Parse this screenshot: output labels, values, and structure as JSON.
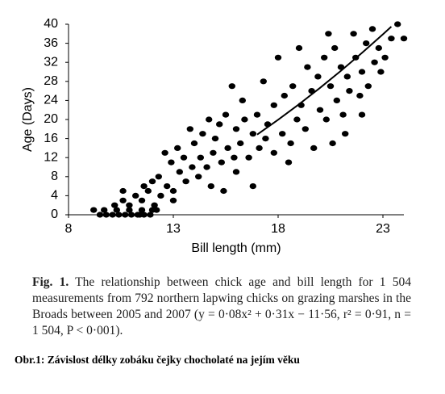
{
  "chart_data": {
    "type": "scatter",
    "x_label": "Bill length (mm)",
    "y_label": "Age (Days)",
    "xlim": [
      8,
      24
    ],
    "xticks": [
      8,
      13,
      18,
      23
    ],
    "ylim": [
      0,
      40
    ],
    "yticks": [
      0,
      4,
      8,
      12,
      16,
      20,
      24,
      28,
      32,
      36,
      40
    ],
    "series": [
      {
        "type": "scatter",
        "color": "#000000",
        "x": [
          9.2,
          9.5,
          9.8,
          10.1,
          10.4,
          10.7,
          11.0,
          11.3,
          11.6,
          11.9,
          9.7,
          10.3,
          10.9,
          11.5,
          12.0,
          10.2,
          10.6,
          10.9,
          11.2,
          11.5,
          11.8,
          12.1,
          12.4,
          12.0,
          11.6,
          10.6,
          12.3,
          12.7,
          13.0,
          13.3,
          12.9,
          13.6,
          13.9,
          14.2,
          12.6,
          13.2,
          13.5,
          14.0,
          14.3,
          14.6,
          14.9,
          13.8,
          14.4,
          15.0,
          15.3,
          15.6,
          15.9,
          16.2,
          14.7,
          15.2,
          15.5,
          16.0,
          16.4,
          16.8,
          17.1,
          17.4,
          13.0,
          12.2,
          11.4,
          14.8,
          16.0,
          16.6,
          17.8,
          17.0,
          17.5,
          17.8,
          18.2,
          18.6,
          18.9,
          19.3,
          18.3,
          18.7,
          19.1,
          19.6,
          20.0,
          20.3,
          19.4,
          19.9,
          20.5,
          20.8,
          21.1,
          21.4,
          20.2,
          20.7,
          21.0,
          21.3,
          21.7,
          22.0,
          22.3,
          22.6,
          21.6,
          22.2,
          22.5,
          22.8,
          23.1,
          23.4,
          23.7,
          24.0,
          20.4,
          21.9,
          22.9,
          16.3,
          15.8,
          17.3,
          18.0,
          19.0,
          21.2,
          22.0,
          16.8,
          15.4,
          18.5,
          20.6,
          19.7
        ],
        "values": [
          1,
          0,
          0,
          0,
          0,
          0,
          0,
          0,
          0,
          0,
          1,
          1,
          1,
          1,
          1,
          2,
          3,
          2,
          4,
          3,
          5,
          2,
          4,
          7,
          6,
          5,
          8,
          6,
          5,
          9,
          11,
          7,
          10,
          8,
          13,
          14,
          12,
          15,
          12,
          10,
          13,
          18,
          17,
          16,
          11,
          14,
          12,
          15,
          20,
          19,
          21,
          18,
          20,
          17,
          14,
          16,
          3,
          1,
          0,
          6,
          9,
          12,
          13,
          21,
          19,
          23,
          17,
          15,
          20,
          18,
          25,
          27,
          23,
          26,
          22,
          20,
          31,
          29,
          27,
          24,
          21,
          26,
          33,
          35,
          31,
          29,
          33,
          30,
          27,
          32,
          38,
          36,
          39,
          35,
          33,
          37,
          40,
          37,
          38,
          25,
          30,
          24,
          27,
          28,
          33,
          35,
          17,
          21,
          6,
          5,
          11,
          15,
          14
        ]
      },
      {
        "type": "line",
        "color": "#000000",
        "x": [
          17,
          18,
          19,
          20,
          21,
          22,
          23,
          23.4
        ],
        "values": [
          16.83,
          19.94,
          23.21,
          26.64,
          30.23,
          33.98,
          37.89,
          39.49
        ]
      }
    ]
  },
  "caption": {
    "label": "Fig. 1.",
    "text": "The relationship between chick age and bill length for 1 504 measurements from 792 northern lapwing chicks on grazing marshes in the Broads between 2005 and 2007 (y = 0·08x² + 0·31x − 11·56, r² = 0·91, n = 1 504, P < 0·001)."
  },
  "note": "Obr.1: Závislost délky zobáku čejky chocholaté na jejím věku"
}
